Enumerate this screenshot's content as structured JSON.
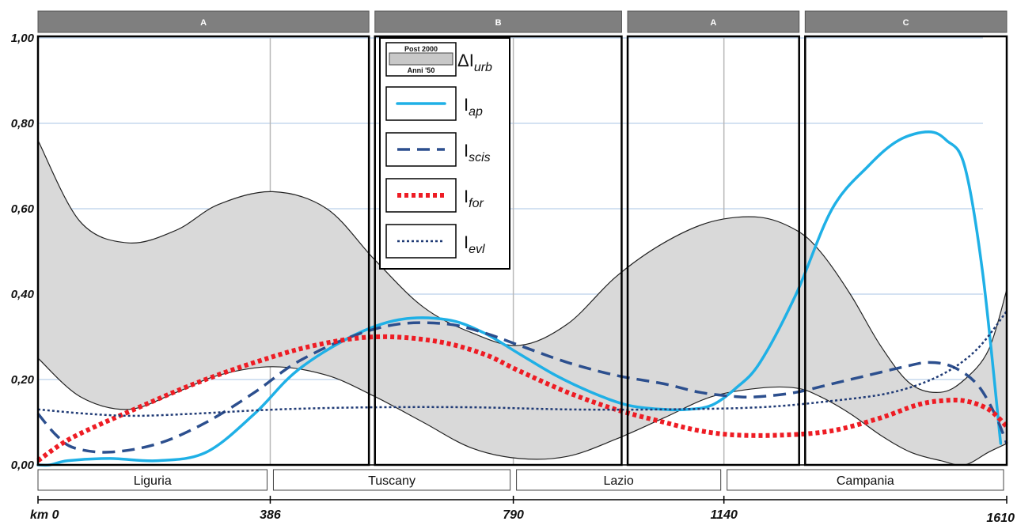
{
  "chart_data": {
    "type": "line",
    "xlim": [
      0,
      1610
    ],
    "ylim": [
      0,
      1
    ],
    "x_tick_labels": [
      "km 0",
      "386",
      "790",
      "1140",
      "1610"
    ],
    "x_tick_values": [
      0,
      386,
      790,
      1140,
      1610
    ],
    "y_tick_labels": [
      "0,00",
      "0,20",
      "0,40",
      "0,60",
      "0,80",
      "1,00"
    ],
    "y_tick_values": [
      0,
      0.2,
      0.4,
      0.6,
      0.8,
      1.0
    ],
    "grid": "horizontal",
    "zones": [
      {
        "label": "A",
        "x_start": 0,
        "x_end": 550
      },
      {
        "label": "B",
        "x_start": 560,
        "x_end": 970
      },
      {
        "label": "A",
        "x_start": 980,
        "x_end": 1265
      },
      {
        "label": "C",
        "x_start": 1275,
        "x_end": 1610
      }
    ],
    "regions": [
      {
        "label": "Liguria",
        "x_start": 0,
        "x_end": 386
      },
      {
        "label": "Tuscany",
        "x_start": 386,
        "x_end": 790
      },
      {
        "label": "Lazio",
        "x_start": 790,
        "x_end": 1140
      },
      {
        "label": "Campania",
        "x_start": 1140,
        "x_end": 1610
      }
    ],
    "legend": {
      "placement": "top-center",
      "band_top_label": "Post 2000",
      "band_bottom_label": "Anni '50",
      "band_symbol": "ΔI",
      "band_subscript": "urb",
      "entries": [
        {
          "symbol": "I",
          "subscript": "ap"
        },
        {
          "symbol": "I",
          "subscript": "scis"
        },
        {
          "symbol": "I",
          "subscript": "for"
        },
        {
          "symbol": "I",
          "subscript": "evl"
        }
      ]
    },
    "band": {
      "name": "ΔIurb",
      "fill": "#d9d9d9",
      "x": [
        0,
        70,
        150,
        230,
        300,
        390,
        480,
        560,
        640,
        720,
        800,
        880,
        960,
        1040,
        1120,
        1200,
        1260,
        1300,
        1350,
        1400,
        1450,
        1500,
        1540,
        1580,
        1610
      ],
      "upper": [
        0.76,
        0.57,
        0.52,
        0.55,
        0.61,
        0.64,
        0.6,
        0.48,
        0.37,
        0.31,
        0.28,
        0.33,
        0.44,
        0.52,
        0.57,
        0.58,
        0.55,
        0.5,
        0.4,
        0.28,
        0.19,
        0.17,
        0.2,
        0.27,
        0.41
      ],
      "lower": [
        0.25,
        0.16,
        0.13,
        0.17,
        0.21,
        0.23,
        0.21,
        0.16,
        0.1,
        0.04,
        0.015,
        0.02,
        0.06,
        0.11,
        0.16,
        0.18,
        0.18,
        0.16,
        0.12,
        0.07,
        0.03,
        0.01,
        0.0,
        0.03,
        0.05
      ]
    },
    "series": [
      {
        "key": "Iap",
        "color": "#1fb0e6",
        "dash": "solid",
        "x": [
          0,
          20,
          50,
          120,
          200,
          280,
          360,
          430,
          520,
          600,
          680,
          740,
          800,
          860,
          920,
          980,
          1040,
          1080,
          1120,
          1160,
          1200,
          1260,
          1320,
          1380,
          1430,
          1480,
          1510,
          1540,
          1570,
          1600
        ],
        "y": [
          0,
          0,
          0.01,
          0.015,
          0.01,
          0.03,
          0.12,
          0.22,
          0.3,
          0.34,
          0.34,
          0.31,
          0.26,
          0.21,
          0.17,
          0.14,
          0.13,
          0.13,
          0.14,
          0.18,
          0.24,
          0.4,
          0.6,
          0.7,
          0.76,
          0.78,
          0.76,
          0.7,
          0.45,
          0.05
        ]
      },
      {
        "key": "Iscis",
        "color": "#2c4f8e",
        "dash": "long-dash",
        "x": [
          0,
          30,
          60,
          120,
          200,
          280,
          360,
          430,
          520,
          600,
          680,
          740,
          800,
          880,
          960,
          1040,
          1100,
          1160,
          1200,
          1260,
          1320,
          1380,
          1440,
          1480,
          1520,
          1560,
          1590,
          1610
        ],
        "y": [
          0.12,
          0.07,
          0.04,
          0.03,
          0.05,
          0.1,
          0.17,
          0.24,
          0.3,
          0.33,
          0.33,
          0.31,
          0.28,
          0.24,
          0.21,
          0.19,
          0.17,
          0.16,
          0.16,
          0.17,
          0.19,
          0.21,
          0.23,
          0.24,
          0.23,
          0.19,
          0.12,
          0.05
        ]
      },
      {
        "key": "Ifor",
        "color": "#ee1c24",
        "dash": "dotted-thick",
        "x": [
          0,
          40,
          80,
          160,
          260,
          360,
          460,
          560,
          660,
          740,
          800,
          880,
          960,
          1040,
          1100,
          1160,
          1240,
          1320,
          1400,
          1460,
          1500,
          1540,
          1580,
          1610
        ],
        "y": [
          0.01,
          0.05,
          0.08,
          0.13,
          0.19,
          0.24,
          0.28,
          0.3,
          0.29,
          0.26,
          0.22,
          0.17,
          0.13,
          0.1,
          0.08,
          0.07,
          0.07,
          0.08,
          0.11,
          0.14,
          0.15,
          0.15,
          0.13,
          0.09
        ]
      },
      {
        "key": "Ievl",
        "color": "#1f3a75",
        "dash": "dotted-fine",
        "x": [
          0,
          80,
          160,
          260,
          400,
          560,
          720,
          880,
          1040,
          1200,
          1320,
          1420,
          1500,
          1560,
          1610
        ],
        "y": [
          0.13,
          0.12,
          0.115,
          0.12,
          0.13,
          0.135,
          0.135,
          0.13,
          0.13,
          0.135,
          0.15,
          0.17,
          0.21,
          0.27,
          0.36
        ]
      }
    ]
  }
}
